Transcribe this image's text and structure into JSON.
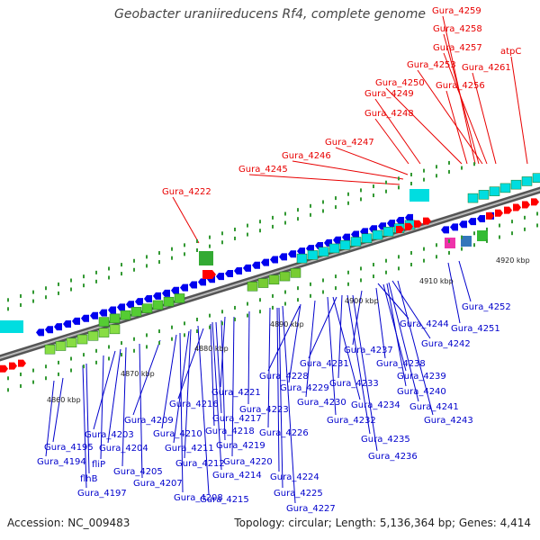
{
  "title": "Geobacter uraniireducens Rf4, complete genome",
  "footer": {
    "accession": "Accession: NC_009483",
    "summary": "Topology: circular; Length: 5,136,364 bp; Genes: 4,414"
  },
  "scale_labels": [
    "4860 kbp",
    "4870 kbp",
    "4880 kbp",
    "4890 kbp",
    "4900 kbp",
    "4910 kbp",
    "4920 kbp"
  ],
  "colors": {
    "forward_label": "#e80000",
    "reverse_label": "#0000cc",
    "forward_gene": "#ff0000",
    "reverse_gene": "#0000ee",
    "backbone": "#777777",
    "rna": "#00dde0",
    "green": "#33aa33"
  },
  "forward_labels": [
    "Gura_4259",
    "Gura_4258",
    "Gura_4257",
    "Gura_4253",
    "Gura_4261",
    "Gura_4250",
    "Gura_4256",
    "atpC",
    "Gura_4249",
    "Gura_4248",
    "Gura_4247",
    "Gura_4246",
    "Gura_4245",
    "Gura_4222"
  ],
  "reverse_labels": [
    "Gura_4252",
    "Gura_4251",
    "Gura_4244",
    "Gura_4242",
    "Gura_4237",
    "Gura_4238",
    "Gura_4231",
    "Gura_4239",
    "Gura_4228",
    "Gura_4233",
    "Gura_4229",
    "Gura_4240",
    "Gura_4230",
    "Gura_4234",
    "Gura_4241",
    "Gura_4221",
    "Gura_4216",
    "Gura_4232",
    "Gura_4243",
    "Gura_4223",
    "Gura_4209",
    "Gura_4217",
    "Gura_4218",
    "Gura_4226",
    "Gura_4203",
    "Gura_4210",
    "Gura_4235",
    "Gura_4195",
    "Gura_4204",
    "Gura_4211",
    "Gura_4219",
    "Gura_4236",
    "Gura_4194",
    "fliP",
    "Gura_4212",
    "Gura_4220",
    "Gura_4205",
    "Gura_4214",
    "Gura_4224",
    "flhB",
    "Gura_4207",
    "Gura_4197",
    "Gura_4208",
    "Gura_4225",
    "Gura_4215",
    "Gura_4227"
  ]
}
